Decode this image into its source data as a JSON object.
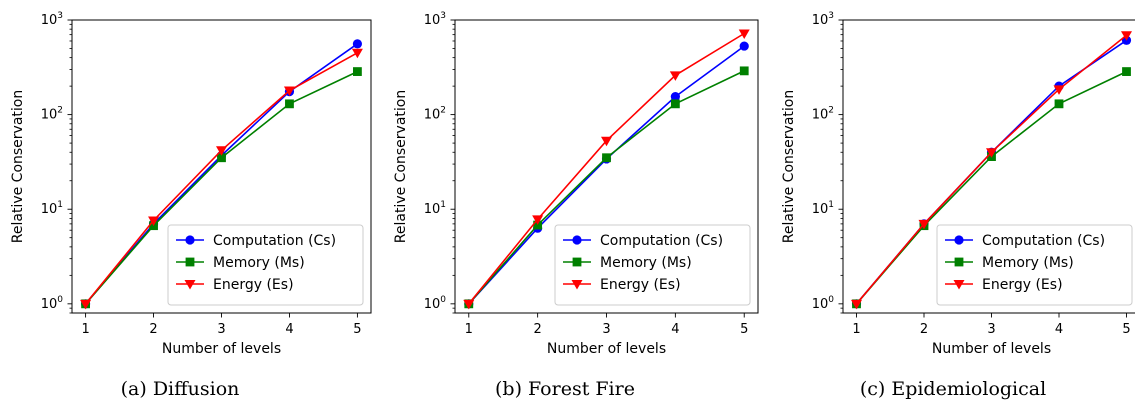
{
  "chart_data": [
    {
      "type": "line",
      "title": "",
      "caption": "(a) Diffusion",
      "xlabel": "Number of levels",
      "ylabel": "Relative Conservation",
      "yscale": "log",
      "ylim": [
        0.8,
        1000
      ],
      "x": [
        1,
        2,
        3,
        4,
        5
      ],
      "xlim": [
        0.8,
        5.2
      ],
      "xticks": [
        "1",
        "2",
        "3",
        "4",
        "5"
      ],
      "yticks": [
        {
          "base": "10",
          "exp": "0"
        },
        {
          "base": "10",
          "exp": "1"
        },
        {
          "base": "10",
          "exp": "2"
        },
        {
          "base": "10",
          "exp": "3"
        }
      ],
      "legend_position": "lower-right",
      "grid": false,
      "series": [
        {
          "name": "Computation (Cs)",
          "color": "#0000ff",
          "marker": "circle",
          "values": [
            1,
            7,
            37,
            175,
            560
          ]
        },
        {
          "name": "Memory (Ms)",
          "color": "#008000",
          "marker": "square",
          "values": [
            1,
            6.7,
            35,
            130,
            285
          ]
        },
        {
          "name": "Energy (Es)",
          "color": "#ff0000",
          "marker": "triangle-down",
          "values": [
            1,
            7.6,
            42,
            180,
            450
          ]
        }
      ]
    },
    {
      "type": "line",
      "title": "",
      "caption": "(b) Forest Fire",
      "xlabel": "Number of levels",
      "ylabel": "Relative Conservation",
      "yscale": "log",
      "ylim": [
        0.8,
        1000
      ],
      "x": [
        1,
        2,
        3,
        4,
        5
      ],
      "xlim": [
        0.8,
        5.2
      ],
      "xticks": [
        "1",
        "2",
        "3",
        "4",
        "5"
      ],
      "yticks": [
        {
          "base": "10",
          "exp": "0"
        },
        {
          "base": "10",
          "exp": "1"
        },
        {
          "base": "10",
          "exp": "2"
        },
        {
          "base": "10",
          "exp": "3"
        }
      ],
      "legend_position": "lower-right",
      "grid": false,
      "series": [
        {
          "name": "Computation (Cs)",
          "color": "#0000ff",
          "marker": "circle",
          "values": [
            1,
            6.3,
            34,
            155,
            530
          ]
        },
        {
          "name": "Memory (Ms)",
          "color": "#008000",
          "marker": "square",
          "values": [
            1,
            6.8,
            35,
            130,
            290
          ]
        },
        {
          "name": "Energy (Es)",
          "color": "#ff0000",
          "marker": "triangle-down",
          "values": [
            1,
            7.8,
            53,
            260,
            720
          ]
        }
      ]
    },
    {
      "type": "line",
      "title": "",
      "caption": "(c) Epidemiological",
      "xlabel": "Number of levels",
      "ylabel": "Relative Conservation",
      "yscale": "log",
      "ylim": [
        0.8,
        1000
      ],
      "x": [
        1,
        2,
        3,
        4,
        5
      ],
      "xlim": [
        0.8,
        5.2
      ],
      "xticks": [
        "1",
        "2",
        "3",
        "4",
        "5"
      ],
      "yticks": [
        {
          "base": "10",
          "exp": "0"
        },
        {
          "base": "10",
          "exp": "1"
        },
        {
          "base": "10",
          "exp": "2"
        },
        {
          "base": "10",
          "exp": "3"
        }
      ],
      "legend_position": "lower-right",
      "grid": false,
      "series": [
        {
          "name": "Computation (Cs)",
          "color": "#0000ff",
          "marker": "circle",
          "values": [
            1,
            7,
            40,
            200,
            610
          ]
        },
        {
          "name": "Memory (Ms)",
          "color": "#008000",
          "marker": "square",
          "values": [
            1,
            6.7,
            36,
            130,
            285
          ]
        },
        {
          "name": "Energy (Es)",
          "color": "#ff0000",
          "marker": "triangle-down",
          "values": [
            1,
            7,
            40,
            185,
            690
          ]
        }
      ]
    }
  ]
}
